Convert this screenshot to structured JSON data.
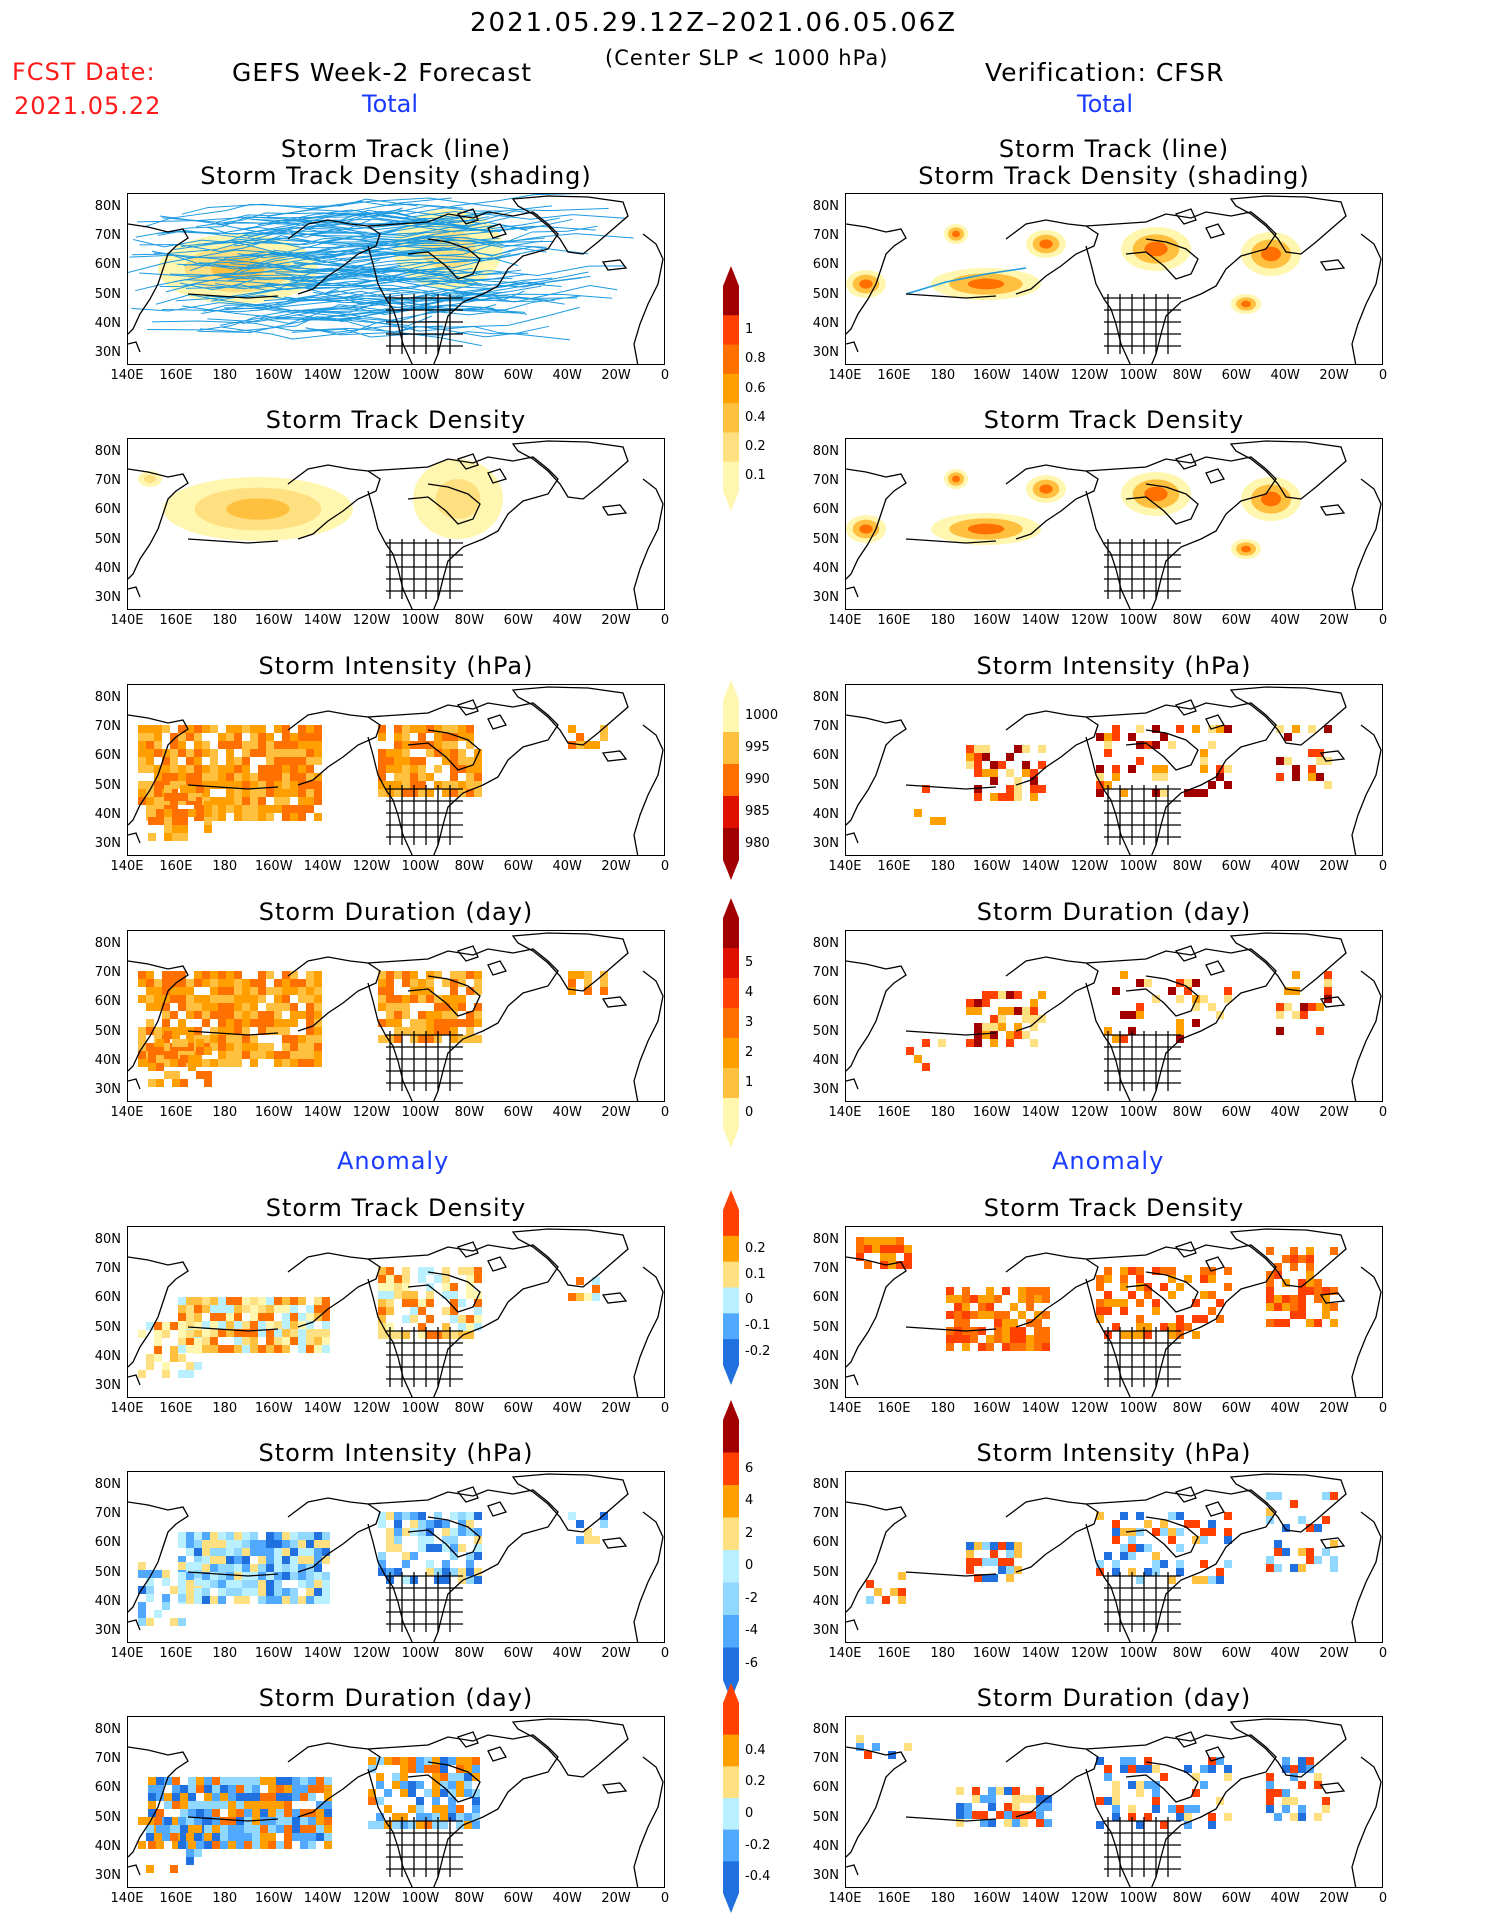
{
  "header": {
    "period": "2021.05.29.12Z–2021.06.05.06Z",
    "criteria": "(Center SLP < 1000 hPa)",
    "fcst_label": "FCST Date:",
    "fcst_date": "2021.05.22",
    "left_title": "GEFS Week-2 Forecast",
    "right_title": "Verification: CFSR",
    "total": "Total",
    "anomaly": "Anomaly"
  },
  "panel_titles": {
    "track": "Storm Track (line)",
    "track2": "Storm Track Density (shading)",
    "density": "Storm Track Density",
    "intensity": "Storm Intensity (hPa)",
    "duration": "Storm Duration (day)"
  },
  "axes": {
    "lat": [
      "80N",
      "70N",
      "60N",
      "50N",
      "40N",
      "30N"
    ],
    "lon": [
      "140E",
      "160E",
      "180",
      "160W",
      "140W",
      "120W",
      "100W",
      "80W",
      "60W",
      "40W",
      "20W",
      "0"
    ]
  },
  "colorbars": {
    "density_total": [
      "1",
      "0.8",
      "0.6",
      "0.4",
      "0.2",
      "0.1"
    ],
    "intensity_total": [
      "1000",
      "995",
      "990",
      "985",
      "980"
    ],
    "duration_total": [
      "5",
      "4",
      "3",
      "2",
      "1",
      "0"
    ],
    "density_anom": [
      "0.2",
      "0.1",
      "0",
      "-0.1",
      "-0.2"
    ],
    "intensity_anom": [
      "6",
      "4",
      "2",
      "0",
      "-2",
      "-4",
      "-6"
    ],
    "duration_anom": [
      "0.4",
      "0.2",
      "0",
      "-0.2",
      "-0.4"
    ]
  },
  "colors": {
    "warm": [
      "#fff6b0",
      "#ffe080",
      "#ffc040",
      "#ffa000",
      "#ff7000",
      "#ff4000",
      "#e01000",
      "#a00000"
    ],
    "cool": [
      "#b8f0ff",
      "#90d8ff",
      "#50a8ff",
      "#2070e0"
    ],
    "track_line": "#1e9be0"
  }
}
